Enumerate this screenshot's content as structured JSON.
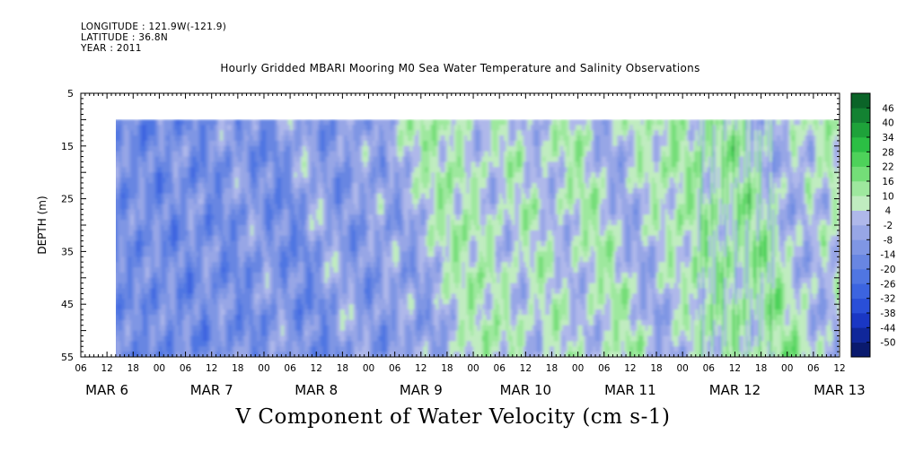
{
  "header": {
    "longitude": "LONGITUDE : 121.9W(-121.9)",
    "latitude": "LATITUDE : 36.8N",
    "year": "YEAR : 2011"
  },
  "chart_data": {
    "type": "heatmap",
    "title": "Hourly Gridded MBARI Mooring M0 Sea Water Temperature and Salinity Observations",
    "variable_label": "V Component of Water Velocity (cm s-1)",
    "ylabel": "DEPTH (m)",
    "y_ticks": [
      5,
      15,
      25,
      35,
      45,
      55
    ],
    "ylim": [
      5,
      55
    ],
    "y_inverted": true,
    "data_depth_range": [
      10,
      55
    ],
    "xlim_hours": [
      0,
      174
    ],
    "data_start_hour": 6,
    "x_ticks_hour_labels": [
      "06",
      "12",
      "18",
      "00",
      "06",
      "12",
      "18",
      "00",
      "06",
      "12",
      "18",
      "00",
      "06",
      "12",
      "18",
      "00",
      "06",
      "12",
      "18",
      "00",
      "06",
      "12",
      "18",
      "00",
      "06",
      "12",
      "18",
      "00",
      "06",
      "12"
    ],
    "x_date_labels": [
      {
        "label": "MAR  6",
        "hour": 6
      },
      {
        "label": "MAR  7",
        "hour": 30
      },
      {
        "label": "MAR  8",
        "hour": 54
      },
      {
        "label": "MAR  9",
        "hour": 78
      },
      {
        "label": "MAR 10",
        "hour": 102
      },
      {
        "label": "MAR 11",
        "hour": 126
      },
      {
        "label": "MAR 12",
        "hour": 150
      },
      {
        "label": "MAR 13",
        "hour": 174
      }
    ],
    "colorbar": {
      "levels": [
        -50,
        -44,
        -38,
        -32,
        -26,
        -20,
        -14,
        -8,
        -2,
        4,
        10,
        16,
        22,
        28,
        34,
        40,
        46
      ],
      "colors": [
        "#0a1a6e",
        "#10279a",
        "#1a37c4",
        "#2a4fd8",
        "#3c64e0",
        "#5076e2",
        "#6886e2",
        "#7f96e4",
        "#97a6e6",
        "#afb8ea",
        "#c0ecc0",
        "#9ee89e",
        "#74de78",
        "#4ed25a",
        "#2bbf44",
        "#1ea23a",
        "#138232",
        "#0b6428"
      ]
    },
    "grid": false
  }
}
